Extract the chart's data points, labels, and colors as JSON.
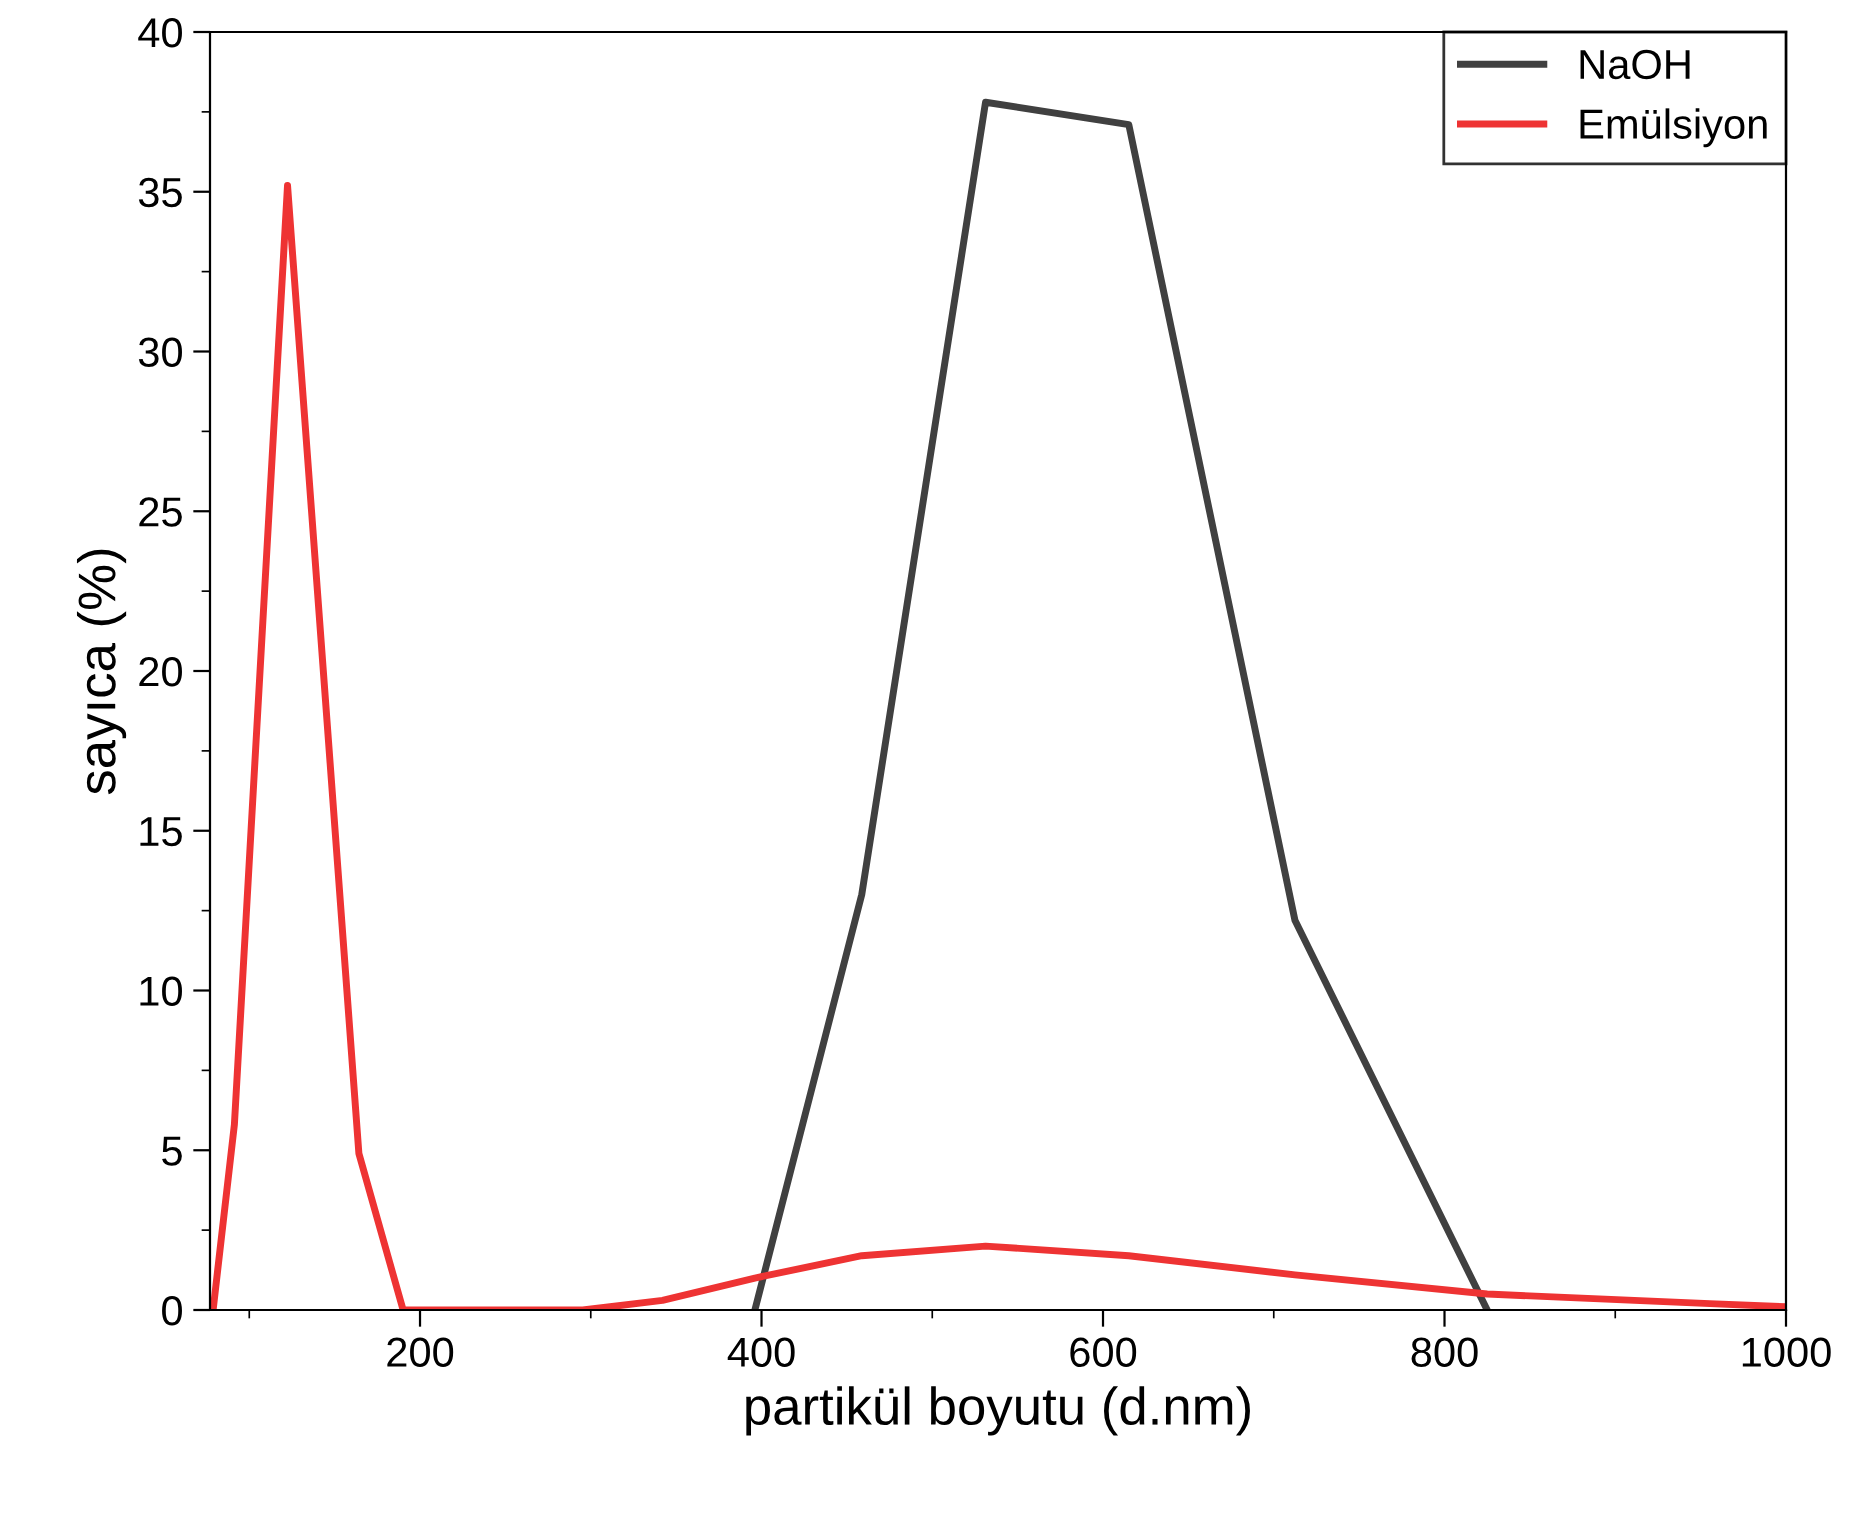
{
  "chart_data": {
    "type": "line",
    "xlabel": "partikül boyutu (d.nm)",
    "ylabel": "sayıca (%)",
    "xlim": [
      77,
      1000
    ],
    "xticks": [
      200,
      400,
      600,
      800,
      1000
    ],
    "ylim": [
      0,
      40
    ],
    "yticks": [
      0,
      5,
      10,
      15,
      20,
      25,
      30,
      35,
      40
    ],
    "legend": "top right",
    "grid": false,
    "marker": "none",
    "line_style": "solid",
    "series": [
      {
        "name": "NaOH",
        "color": "#404040",
        "x": [
          396.1,
          458.7,
          531.2,
          615.1,
          712.4,
          825
        ],
        "values": [
          0,
          13,
          37.8,
          37.1,
          12.2,
          0
        ]
      },
      {
        "name": "Emülsiyon",
        "color": "#ee3333",
        "x": [
          78.82,
          91.28,
          122.4,
          164.2,
          190.1,
          295.3,
          342,
          396.1,
          458.7,
          531.2,
          615.1,
          712.4,
          825,
          955.4,
          1000
        ],
        "values": [
          0,
          5.8,
          35.2,
          4.9,
          0,
          0,
          0.3,
          1.0,
          1.7,
          2.0,
          1.7,
          1.1,
          0.5,
          0.2,
          0.1
        ]
      }
    ]
  }
}
